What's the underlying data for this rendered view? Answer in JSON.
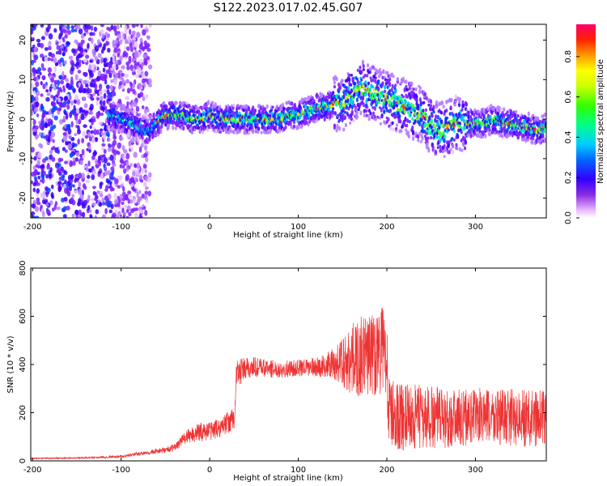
{
  "chart_data": [
    {
      "type": "heatmap",
      "title": "S122.2023.017.02.45.G07",
      "xlabel": "Height of straight line (km)",
      "ylabel": "Frequency (Hz)",
      "xlim": [
        -202,
        380
      ],
      "ylim": [
        -25,
        24
      ],
      "xticks": [
        -200,
        -100,
        0,
        100,
        200,
        300
      ],
      "yticks": [
        -20,
        -10,
        0,
        10,
        20
      ],
      "ridge": {
        "x": [
          -110,
          -100,
          -90,
          -80,
          -70,
          -60,
          -50,
          -40,
          -30,
          -20,
          -10,
          0,
          10,
          20,
          30,
          40,
          50,
          60,
          70,
          80,
          90,
          100,
          110,
          120,
          130,
          140,
          150,
          160,
          170,
          180,
          190,
          200,
          210,
          220,
          230,
          240,
          250,
          260,
          270,
          280,
          290,
          300,
          310,
          320,
          330,
          340,
          350,
          360,
          370,
          380
        ],
        "y": [
          1,
          0,
          -1,
          -2,
          -3,
          -1,
          1,
          1,
          1,
          0,
          0,
          1,
          0,
          0,
          0,
          0,
          0,
          0,
          0,
          0,
          1,
          1,
          2,
          3,
          3,
          4,
          4,
          6,
          8,
          7,
          6,
          5,
          4,
          3,
          2,
          1,
          -2,
          -3,
          -2,
          -1,
          -1,
          -1,
          -1,
          0,
          -1,
          -1,
          -2,
          -2,
          -3,
          -2
        ]
      },
      "colorbar": {
        "label": "Normalized spectral amplitude",
        "range": [
          0,
          0.96
        ],
        "ticks": [
          "0.0",
          "0.2",
          "0.4",
          "0.6",
          "0.8"
        ]
      }
    },
    {
      "type": "line",
      "title": "",
      "xlabel": "Height of straight line (km)",
      "ylabel": "SNR (10 * v/v)",
      "xlim": [
        -202,
        380
      ],
      "ylim": [
        0,
        800
      ],
      "xticks": [
        -200,
        -100,
        0,
        100,
        200,
        300
      ],
      "yticks": [
        0,
        200,
        400,
        600,
        800
      ],
      "color": "#ee3333",
      "series": [
        {
          "x": [
            -200,
            -150,
            -100,
            -80,
            -60,
            -50,
            -40,
            -30,
            -20,
            -10,
            0,
            10,
            20,
            28,
            30,
            40,
            50,
            60,
            80,
            100,
            120,
            130,
            140,
            150,
            160,
            170,
            180,
            190,
            200,
            202,
            210,
            220,
            240,
            260,
            280,
            300,
            320,
            340,
            360,
            380
          ],
          "values": [
            10,
            12,
            18,
            30,
            40,
            45,
            55,
            90,
            110,
            120,
            125,
            135,
            160,
            170,
            360,
            380,
            390,
            385,
            380,
            385,
            390,
            395,
            400,
            410,
            420,
            430,
            440,
            450,
            460,
            200,
            190,
            180,
            180,
            175,
            180,
            185,
            180,
            180,
            175,
            180
          ],
          "amplitude": [
            3,
            3,
            5,
            8,
            10,
            12,
            15,
            25,
            35,
            40,
            40,
            40,
            45,
            50,
            60,
            50,
            45,
            40,
            35,
            35,
            40,
            50,
            70,
            110,
            150,
            170,
            170,
            180,
            200,
            150,
            140,
            140,
            140,
            130,
            120,
            120,
            120,
            120,
            120,
            120
          ]
        }
      ]
    }
  ]
}
